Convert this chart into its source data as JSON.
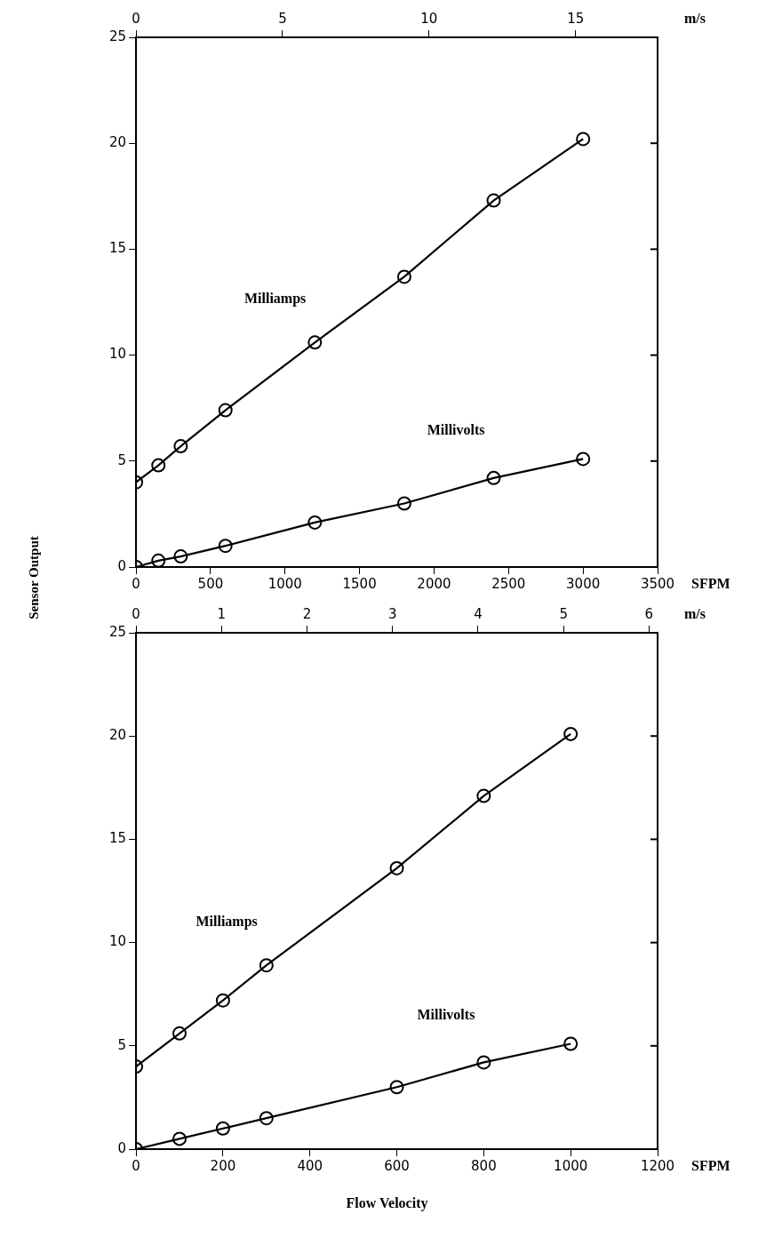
{
  "chart_data": [
    {
      "type": "line",
      "ylabel": "Sensor Output",
      "xlabel": "SFPM",
      "x2label": "m/s",
      "marker": "circle",
      "line_style": "solid",
      "legend": false,
      "grid": false,
      "xlim": [
        0,
        3500
      ],
      "xticks": [
        0,
        500,
        1000,
        1500,
        2000,
        2500,
        3000,
        3500
      ],
      "x2lim": [
        0,
        17.8
      ],
      "x2ticks": [
        0,
        5,
        10,
        15
      ],
      "ylim": [
        0,
        25
      ],
      "yticks": [
        0,
        5,
        10,
        15,
        20,
        25
      ],
      "series": [
        {
          "name": "Milliamps",
          "color": "#000000",
          "x": [
            0,
            150,
            300,
            600,
            1200,
            1800,
            2400,
            3000
          ],
          "values": [
            4,
            4.8,
            5.7,
            7.4,
            10.6,
            13.7,
            17.3,
            20.2
          ]
        },
        {
          "name": "Millivolts",
          "color": "#000000",
          "x": [
            0,
            150,
            300,
            600,
            1200,
            1800,
            2400,
            3000
          ],
          "values": [
            0,
            0.3,
            0.5,
            1.0,
            2.1,
            3.0,
            4.2,
            5.1
          ]
        }
      ]
    },
    {
      "type": "line",
      "xlabel": "SFPM",
      "x2label": "m/s",
      "marker": "circle",
      "line_style": "solid",
      "legend": false,
      "grid": false,
      "xlim": [
        0,
        1200
      ],
      "xticks": [
        0,
        200,
        400,
        600,
        800,
        1000,
        1200
      ],
      "x2lim": [
        0,
        6.1
      ],
      "x2ticks": [
        0,
        1,
        2,
        3,
        4,
        5,
        6
      ],
      "ylim": [
        0,
        25
      ],
      "yticks": [
        0,
        5,
        10,
        15,
        20,
        25
      ],
      "annotations": [
        "Flow Velocity"
      ],
      "series": [
        {
          "name": "Milliamps",
          "color": "#000000",
          "x": [
            0,
            100,
            200,
            300,
            600,
            800,
            1000
          ],
          "values": [
            4,
            5.6,
            7.2,
            8.9,
            13.6,
            17.1,
            20.1
          ]
        },
        {
          "name": "Millivolts",
          "color": "#000000",
          "x": [
            0,
            100,
            200,
            300,
            600,
            800,
            1000
          ],
          "values": [
            0,
            0.5,
            1.0,
            1.5,
            3.0,
            4.2,
            5.1
          ]
        }
      ]
    }
  ]
}
